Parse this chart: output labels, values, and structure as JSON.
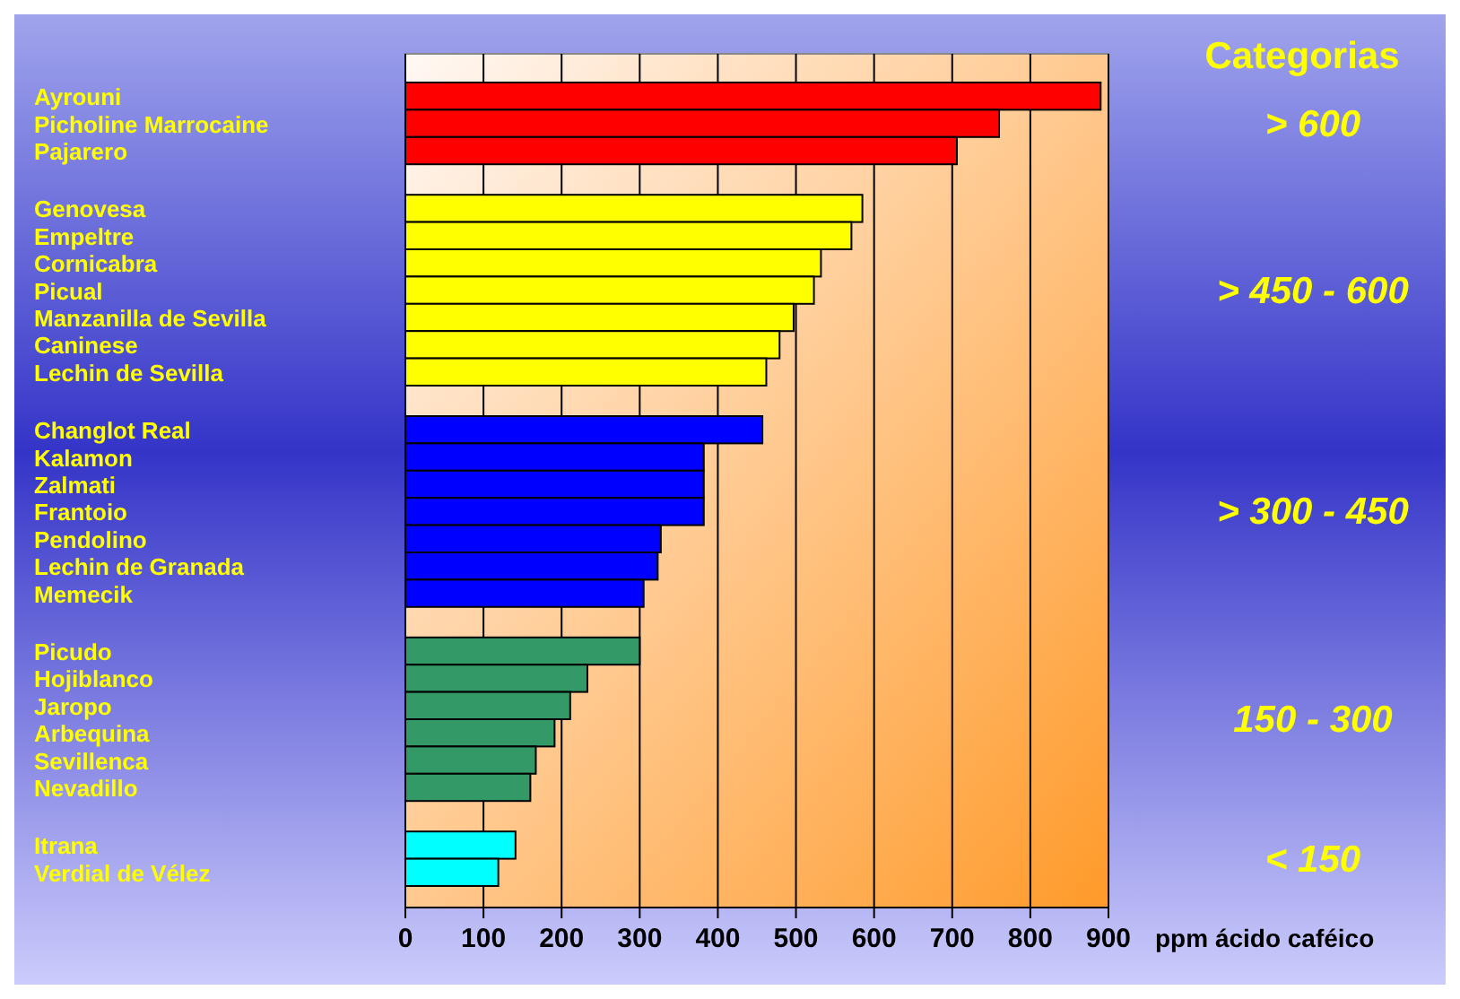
{
  "chart_data": {
    "type": "bar",
    "orientation": "horizontal",
    "xlabel": "ppm ácido caféico",
    "legend_title": "Categorias",
    "legend": "right",
    "grid": "x",
    "categories": [
      "Ayrouni",
      "Picholine Marrocaine",
      "Pajarero",
      "Genovesa",
      "Empeltre",
      "Cornicabra",
      "Picual",
      "Manzanilla de Sevilla",
      "Caninese",
      "Lechin de Sevilla",
      "Changlot Real",
      "Kalamon",
      "Zalmati",
      "Frantoio",
      "Pendolino",
      "Lechin de Granada",
      "Memecik",
      "Picudo",
      "Hojiblanco",
      "Jaropo",
      "Arbequina",
      "Sevillenca",
      "Nevadillo",
      "Itrana",
      "Verdial de Vélez"
    ],
    "xlim": [
      0,
      900
    ],
    "xticks": [
      0,
      100,
      200,
      300,
      400,
      500,
      600,
      700,
      800,
      900
    ],
    "series": [
      {
        "name": "> 600",
        "color": "#ff0000",
        "values": [
          890,
          760,
          706,
          null,
          null,
          null,
          null,
          null,
          null,
          null,
          null,
          null,
          null,
          null,
          null,
          null,
          null,
          null,
          null,
          null,
          null,
          null,
          null,
          null,
          null
        ]
      },
      {
        "name": "> 450 - 600",
        "color": "#ffff00",
        "values": [
          null,
          null,
          null,
          585,
          571,
          532,
          523,
          497,
          479,
          462,
          null,
          null,
          null,
          null,
          null,
          null,
          null,
          null,
          null,
          null,
          null,
          null,
          null,
          null,
          null
        ]
      },
      {
        "name": "> 300 - 450",
        "color": "#0000ff",
        "values": [
          null,
          null,
          null,
          null,
          null,
          null,
          null,
          null,
          null,
          null,
          457,
          382,
          382,
          382,
          327,
          323,
          305,
          null,
          null,
          null,
          null,
          null,
          null,
          null,
          null
        ]
      },
      {
        "name": "150 - 300",
        "color": "#339966",
        "values": [
          null,
          null,
          null,
          null,
          null,
          null,
          null,
          null,
          null,
          null,
          null,
          null,
          null,
          null,
          null,
          null,
          null,
          300,
          233,
          211,
          191,
          167,
          160,
          null,
          null
        ]
      },
      {
        "name": "< 150",
        "color": "#00ffff",
        "values": [
          null,
          null,
          null,
          null,
          null,
          null,
          null,
          null,
          null,
          null,
          null,
          null,
          null,
          null,
          null,
          null,
          null,
          null,
          null,
          null,
          null,
          null,
          null,
          141,
          119
        ]
      }
    ]
  }
}
